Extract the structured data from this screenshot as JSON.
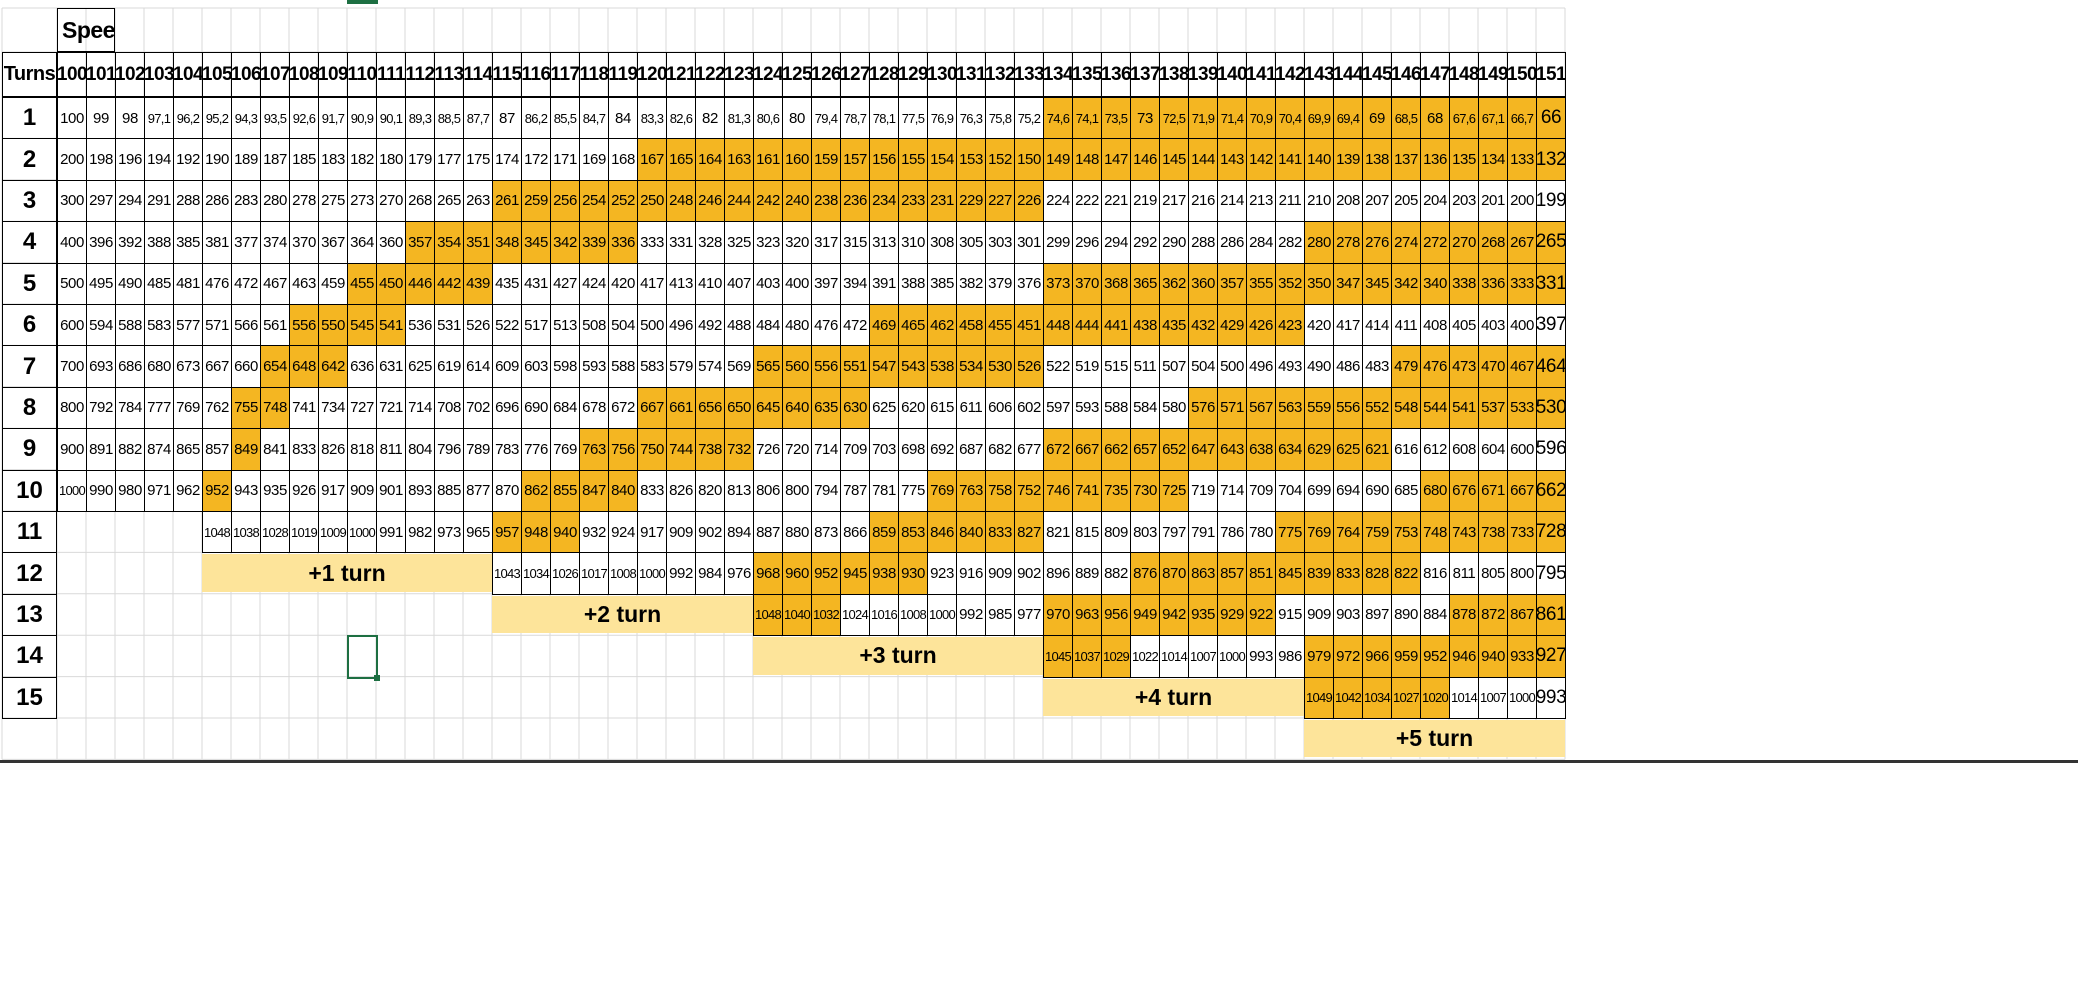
{
  "sheet": {
    "speed_label": "Speed",
    "turns_label": "Turns",
    "speeds": [
      100,
      101,
      102,
      103,
      104,
      105,
      106,
      107,
      108,
      109,
      110,
      111,
      112,
      113,
      114,
      115,
      116,
      117,
      118,
      119,
      120,
      121,
      122,
      123,
      124,
      125,
      126,
      127,
      128,
      129,
      130,
      131,
      132,
      133,
      134,
      135,
      136,
      137,
      138,
      139,
      140,
      141,
      142,
      143,
      144,
      145,
      146,
      147,
      148,
      149,
      150,
      151
    ],
    "turns": [
      "1",
      "2",
      "3",
      "4",
      "5",
      "6",
      "7",
      "8",
      "9",
      "10",
      "11",
      "12",
      "13",
      "14",
      "15"
    ],
    "highlight_color": "#f4b622",
    "band_color": "#fde49a",
    "rows": [
      {
        "start": 0,
        "values": [
          "100",
          "99",
          "98",
          "97,1",
          "96,2",
          "95,2",
          "94,3",
          "93,5",
          "92,6",
          "91,7",
          "90,9",
          "90,1",
          "89,3",
          "88,5",
          "87,7",
          "87",
          "86,2",
          "85,5",
          "84,7",
          "84",
          "83,3",
          "82,6",
          "82",
          "81,3",
          "80,6",
          "80",
          "79,4",
          "78,7",
          "78,1",
          "77,5",
          "76,9",
          "76,3",
          "75,8",
          "75,2",
          "74,6",
          "74,1",
          "73,5",
          "73",
          "72,5",
          "71,9",
          "71,4",
          "70,9",
          "70,4",
          "69,9",
          "69,4",
          "69",
          "68,5",
          "68",
          "67,6",
          "67,1",
          "66,7",
          "66"
        ],
        "hl": [
          [
            34,
            51
          ]
        ]
      },
      {
        "start": 0,
        "values": [
          "200",
          "198",
          "196",
          "194",
          "192",
          "190",
          "189",
          "187",
          "185",
          "183",
          "182",
          "180",
          "179",
          "177",
          "175",
          "174",
          "172",
          "171",
          "169",
          "168",
          "167",
          "165",
          "164",
          "163",
          "161",
          "160",
          "159",
          "157",
          "156",
          "155",
          "154",
          "153",
          "152",
          "150",
          "149",
          "148",
          "147",
          "146",
          "145",
          "144",
          "143",
          "142",
          "141",
          "140",
          "139",
          "138",
          "137",
          "136",
          "135",
          "134",
          "133",
          "132"
        ],
        "hl": [
          [
            20,
            51
          ]
        ]
      },
      {
        "start": 0,
        "values": [
          "300",
          "297",
          "294",
          "291",
          "288",
          "286",
          "283",
          "280",
          "278",
          "275",
          "273",
          "270",
          "268",
          "265",
          "263",
          "261",
          "259",
          "256",
          "254",
          "252",
          "250",
          "248",
          "246",
          "244",
          "242",
          "240",
          "238",
          "236",
          "234",
          "233",
          "231",
          "229",
          "227",
          "226",
          "224",
          "222",
          "221",
          "219",
          "217",
          "216",
          "214",
          "213",
          "211",
          "210",
          "208",
          "207",
          "205",
          "204",
          "203",
          "201",
          "200",
          "199"
        ],
        "hl": [
          [
            15,
            33
          ]
        ]
      },
      {
        "start": 0,
        "values": [
          "400",
          "396",
          "392",
          "388",
          "385",
          "381",
          "377",
          "374",
          "370",
          "367",
          "364",
          "360",
          "357",
          "354",
          "351",
          "348",
          "345",
          "342",
          "339",
          "336",
          "333",
          "331",
          "328",
          "325",
          "323",
          "320",
          "317",
          "315",
          "313",
          "310",
          "308",
          "305",
          "303",
          "301",
          "299",
          "296",
          "294",
          "292",
          "290",
          "288",
          "286",
          "284",
          "282",
          "280",
          "278",
          "276",
          "274",
          "272",
          "270",
          "268",
          "267",
          "265"
        ],
        "hl": [
          [
            12,
            19
          ],
          [
            43,
            51
          ]
        ]
      },
      {
        "start": 0,
        "values": [
          "500",
          "495",
          "490",
          "485",
          "481",
          "476",
          "472",
          "467",
          "463",
          "459",
          "455",
          "450",
          "446",
          "442",
          "439",
          "435",
          "431",
          "427",
          "424",
          "420",
          "417",
          "413",
          "410",
          "407",
          "403",
          "400",
          "397",
          "394",
          "391",
          "388",
          "385",
          "382",
          "379",
          "376",
          "373",
          "370",
          "368",
          "365",
          "362",
          "360",
          "357",
          "355",
          "352",
          "350",
          "347",
          "345",
          "342",
          "340",
          "338",
          "336",
          "333",
          "331"
        ],
        "hl": [
          [
            10,
            14
          ],
          [
            34,
            51
          ]
        ]
      },
      {
        "start": 0,
        "values": [
          "600",
          "594",
          "588",
          "583",
          "577",
          "571",
          "566",
          "561",
          "556",
          "550",
          "545",
          "541",
          "536",
          "531",
          "526",
          "522",
          "517",
          "513",
          "508",
          "504",
          "500",
          "496",
          "492",
          "488",
          "484",
          "480",
          "476",
          "472",
          "469",
          "465",
          "462",
          "458",
          "455",
          "451",
          "448",
          "444",
          "441",
          "438",
          "435",
          "432",
          "429",
          "426",
          "423",
          "420",
          "417",
          "414",
          "411",
          "408",
          "405",
          "403",
          "400",
          "397"
        ],
        "hl": [
          [
            8,
            11
          ],
          [
            28,
            42
          ]
        ]
      },
      {
        "start": 0,
        "values": [
          "700",
          "693",
          "686",
          "680",
          "673",
          "667",
          "660",
          "654",
          "648",
          "642",
          "636",
          "631",
          "625",
          "619",
          "614",
          "609",
          "603",
          "598",
          "593",
          "588",
          "583",
          "579",
          "574",
          "569",
          "565",
          "560",
          "556",
          "551",
          "547",
          "543",
          "538",
          "534",
          "530",
          "526",
          "522",
          "519",
          "515",
          "511",
          "507",
          "504",
          "500",
          "496",
          "493",
          "490",
          "486",
          "483",
          "479",
          "476",
          "473",
          "470",
          "467",
          "464"
        ],
        "hl": [
          [
            7,
            9
          ],
          [
            24,
            33
          ],
          [
            46,
            51
          ]
        ]
      },
      {
        "start": 0,
        "values": [
          "800",
          "792",
          "784",
          "777",
          "769",
          "762",
          "755",
          "748",
          "741",
          "734",
          "727",
          "721",
          "714",
          "708",
          "702",
          "696",
          "690",
          "684",
          "678",
          "672",
          "667",
          "661",
          "656",
          "650",
          "645",
          "640",
          "635",
          "630",
          "625",
          "620",
          "615",
          "611",
          "606",
          "602",
          "597",
          "593",
          "588",
          "584",
          "580",
          "576",
          "571",
          "567",
          "563",
          "559",
          "556",
          "552",
          "548",
          "544",
          "541",
          "537",
          "533",
          "530"
        ],
        "hl": [
          [
            6,
            7
          ],
          [
            20,
            27
          ],
          [
            39,
            51
          ]
        ]
      },
      {
        "start": 0,
        "values": [
          "900",
          "891",
          "882",
          "874",
          "865",
          "857",
          "849",
          "841",
          "833",
          "826",
          "818",
          "811",
          "804",
          "796",
          "789",
          "783",
          "776",
          "769",
          "763",
          "756",
          "750",
          "744",
          "738",
          "732",
          "726",
          "720",
          "714",
          "709",
          "703",
          "698",
          "692",
          "687",
          "682",
          "677",
          "672",
          "667",
          "662",
          "657",
          "652",
          "647",
          "643",
          "638",
          "634",
          "629",
          "625",
          "621",
          "616",
          "612",
          "608",
          "604",
          "600",
          "596"
        ],
        "hl": [
          [
            6,
            6
          ],
          [
            18,
            23
          ],
          [
            34,
            45
          ]
        ]
      },
      {
        "start": 0,
        "values": [
          "1000",
          "990",
          "980",
          "971",
          "962",
          "952",
          "943",
          "935",
          "926",
          "917",
          "909",
          "901",
          "893",
          "885",
          "877",
          "870",
          "862",
          "855",
          "847",
          "840",
          "833",
          "826",
          "820",
          "813",
          "806",
          "800",
          "794",
          "787",
          "781",
          "775",
          "769",
          "763",
          "758",
          "752",
          "746",
          "741",
          "735",
          "730",
          "725",
          "719",
          "714",
          "709",
          "704",
          "699",
          "694",
          "690",
          "685",
          "680",
          "676",
          "671",
          "667",
          "662"
        ],
        "hl": [
          [
            5,
            5
          ],
          [
            16,
            19
          ],
          [
            30,
            38
          ],
          [
            47,
            51
          ]
        ]
      },
      {
        "start": 5,
        "values": [
          "1048",
          "1038",
          "1028",
          "1019",
          "1009",
          "1000",
          "991",
          "982",
          "973",
          "965",
          "957",
          "948",
          "940",
          "932",
          "924",
          "917",
          "909",
          "902",
          "894",
          "887",
          "880",
          "873",
          "866",
          "859",
          "853",
          "846",
          "840",
          "833",
          "827",
          "821",
          "815",
          "809",
          "803",
          "797",
          "791",
          "786",
          "780",
          "775",
          "769",
          "764",
          "759",
          "753",
          "748",
          "743",
          "738",
          "733",
          "728"
        ],
        "hl": [
          [
            15,
            17
          ],
          [
            28,
            33
          ],
          [
            42,
            51
          ]
        ]
      },
      {
        "start": 15,
        "values": [
          "1043",
          "1034",
          "1026",
          "1017",
          "1008",
          "1000",
          "992",
          "984",
          "976",
          "968",
          "960",
          "952",
          "945",
          "938",
          "930",
          "923",
          "916",
          "909",
          "902",
          "896",
          "889",
          "882",
          "876",
          "870",
          "863",
          "857",
          "851",
          "845",
          "839",
          "833",
          "828",
          "822",
          "816",
          "811",
          "805",
          "800",
          "795"
        ],
        "hl": [
          [
            24,
            29
          ],
          [
            37,
            46
          ]
        ]
      },
      {
        "start": 24,
        "values": [
          "1048",
          "1040",
          "1032",
          "1024",
          "1016",
          "1008",
          "1000",
          "992",
          "985",
          "977",
          "970",
          "963",
          "956",
          "949",
          "942",
          "935",
          "929",
          "922",
          "915",
          "909",
          "903",
          "897",
          "890",
          "884",
          "878",
          "872",
          "867",
          "861"
        ],
        "hl": [
          [
            24,
            26
          ],
          [
            34,
            41
          ],
          [
            48,
            51
          ]
        ]
      },
      {
        "start": 34,
        "values": [
          "1045",
          "1037",
          "1029",
          "1022",
          "1014",
          "1007",
          "1000",
          "993",
          "986",
          "979",
          "972",
          "966",
          "959",
          "952",
          "946",
          "940",
          "933",
          "927"
        ],
        "hl": [
          [
            34,
            36
          ],
          [
            43,
            51
          ]
        ]
      },
      {
        "start": 43,
        "values": [
          "1049",
          "1042",
          "1034",
          "1027",
          "1020",
          "1014",
          "1007",
          "1000",
          "993"
        ],
        "hl": [
          [
            43,
            47
          ]
        ]
      }
    ],
    "bands": [
      {
        "label": "+1 turn",
        "row": 11,
        "start": 5,
        "end": 14
      },
      {
        "label": "+2 turn",
        "row": 12,
        "start": 15,
        "end": 23
      },
      {
        "label": "+3 turn",
        "row": 13,
        "start": 24,
        "end": 33
      },
      {
        "label": "+4 turn",
        "row": 14,
        "start": 34,
        "end": 42
      },
      {
        "label": "+5 turn",
        "row": 15,
        "start": 43,
        "end": 51
      }
    ]
  }
}
